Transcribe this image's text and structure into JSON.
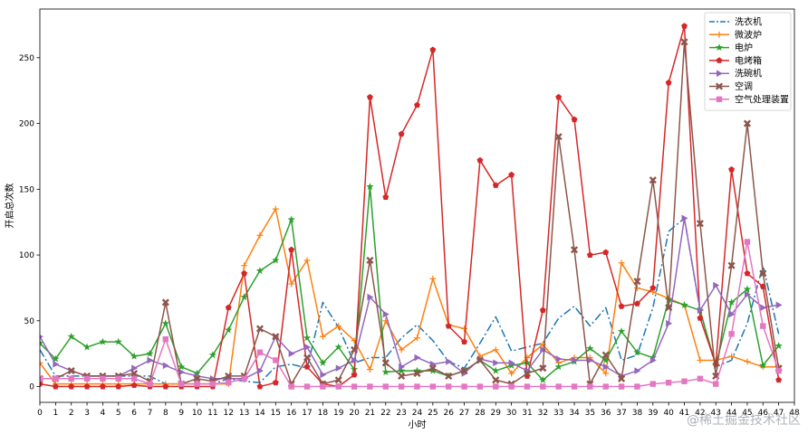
{
  "chart_data": {
    "type": "line",
    "title": "",
    "xlabel": "小时",
    "ylabel": "开启总次数",
    "xlim": [
      0,
      48
    ],
    "ylim": [
      -12,
      287
    ],
    "xticks": [
      0,
      1,
      2,
      3,
      4,
      5,
      6,
      7,
      8,
      9,
      10,
      11,
      12,
      13,
      14,
      15,
      16,
      17,
      18,
      19,
      20,
      21,
      22,
      23,
      24,
      25,
      26,
      27,
      28,
      29,
      30,
      31,
      32,
      33,
      34,
      35,
      36,
      37,
      38,
      39,
      40,
      41,
      42,
      43,
      44,
      45,
      46,
      47,
      48
    ],
    "yticks": [
      0,
      50,
      100,
      150,
      200,
      250
    ],
    "legend_position": "top-right",
    "grid": false,
    "x": [
      0,
      1,
      2,
      3,
      4,
      5,
      6,
      7,
      8,
      9,
      10,
      11,
      12,
      13,
      14,
      15,
      16,
      17,
      18,
      19,
      20,
      21,
      22,
      23,
      24,
      25,
      26,
      27,
      28,
      29,
      30,
      31,
      32,
      33,
      34,
      35,
      36,
      37,
      38,
      39,
      40,
      41,
      42,
      43,
      44,
      45,
      46,
      47
    ],
    "series": [
      {
        "name": "洗衣机",
        "color": "#1f77b4",
        "marker": "none",
        "dash": "dashdot",
        "values": [
          28,
          8,
          8,
          8,
          8,
          8,
          8,
          8,
          2,
          2,
          2,
          2,
          6,
          4,
          3,
          15,
          17,
          14,
          64,
          45,
          18,
          22,
          22,
          37,
          47,
          35,
          19,
          14,
          33,
          53,
          27,
          30,
          33,
          52,
          61,
          46,
          60,
          20,
          24,
          60,
          118,
          128,
          58,
          15,
          20,
          48,
          92,
          40
        ]
      },
      {
        "name": "微波炉",
        "color": "#ff7f0e",
        "marker": "plus",
        "values": [
          18,
          2,
          2,
          2,
          2,
          2,
          2,
          2,
          2,
          2,
          2,
          2,
          2,
          92,
          115,
          135,
          78,
          96,
          38,
          46,
          35,
          13,
          50,
          28,
          37,
          82,
          47,
          44,
          23,
          28,
          10,
          22,
          32,
          18,
          22,
          22,
          10,
          94,
          75,
          72,
          67,
          62,
          20,
          20,
          23,
          19,
          15,
          15
        ]
      },
      {
        "name": "电炉",
        "color": "#2ca02c",
        "marker": "star",
        "values": [
          33,
          21,
          38,
          30,
          34,
          34,
          23,
          25,
          48,
          15,
          10,
          24,
          43,
          68,
          88,
          96,
          127,
          37,
          18,
          30,
          13,
          152,
          11,
          12,
          12,
          12,
          8,
          12,
          20,
          12,
          16,
          18,
          5,
          15,
          19,
          29,
          20,
          42,
          26,
          22,
          66,
          62,
          58,
          16,
          64,
          74,
          16,
          31
        ]
      },
      {
        "name": "电烤箱",
        "color": "#d62728",
        "marker": "pentagon",
        "values": [
          2,
          0,
          0,
          0,
          0,
          0,
          1,
          0,
          0,
          0,
          0,
          0,
          60,
          86,
          0,
          3,
          104,
          15,
          2,
          0,
          9,
          220,
          144,
          192,
          214,
          256,
          46,
          34,
          172,
          153,
          161,
          8,
          58,
          220,
          203,
          100,
          102,
          61,
          63,
          75,
          231,
          274,
          52,
          17,
          165,
          86,
          76,
          5
        ]
      },
      {
        "name": "洗碗机",
        "color": "#9467bd",
        "marker": "triangle-right",
        "values": [
          38,
          17,
          12,
          8,
          8,
          8,
          14,
          20,
          16,
          11,
          8,
          6,
          6,
          6,
          12,
          38,
          25,
          30,
          9,
          14,
          20,
          68,
          55,
          15,
          22,
          17,
          19,
          10,
          21,
          18,
          18,
          12,
          28,
          21,
          20,
          20,
          15,
          8,
          12,
          20,
          48,
          128,
          58,
          77,
          55,
          70,
          60,
          62
        ]
      },
      {
        "name": "空调",
        "color": "#8c564b",
        "marker": "x",
        "values": [
          6,
          6,
          12,
          8,
          8,
          8,
          10,
          4,
          64,
          2,
          6,
          4,
          8,
          8,
          44,
          38,
          2,
          22,
          2,
          5,
          28,
          96,
          18,
          8,
          10,
          14,
          8,
          12,
          20,
          5,
          2,
          10,
          14,
          190,
          104,
          2,
          24,
          6,
          80,
          157,
          60,
          262,
          124,
          8,
          92,
          200,
          86,
          14
        ]
      },
      {
        "name": "空气处理装置",
        "color": "#e377c2",
        "marker": "square",
        "values": [
          6,
          6,
          6,
          6,
          6,
          6,
          6,
          2,
          36,
          2,
          2,
          2,
          3,
          6,
          26,
          20,
          0,
          0,
          0,
          0,
          0,
          0,
          0,
          0,
          0,
          0,
          0,
          0,
          0,
          0,
          0,
          0,
          0,
          0,
          0,
          0,
          0,
          0,
          0,
          2,
          3,
          4,
          6,
          2,
          40,
          110,
          46,
          12
        ]
      }
    ]
  },
  "watermark": "@稀土掘金技术社区"
}
